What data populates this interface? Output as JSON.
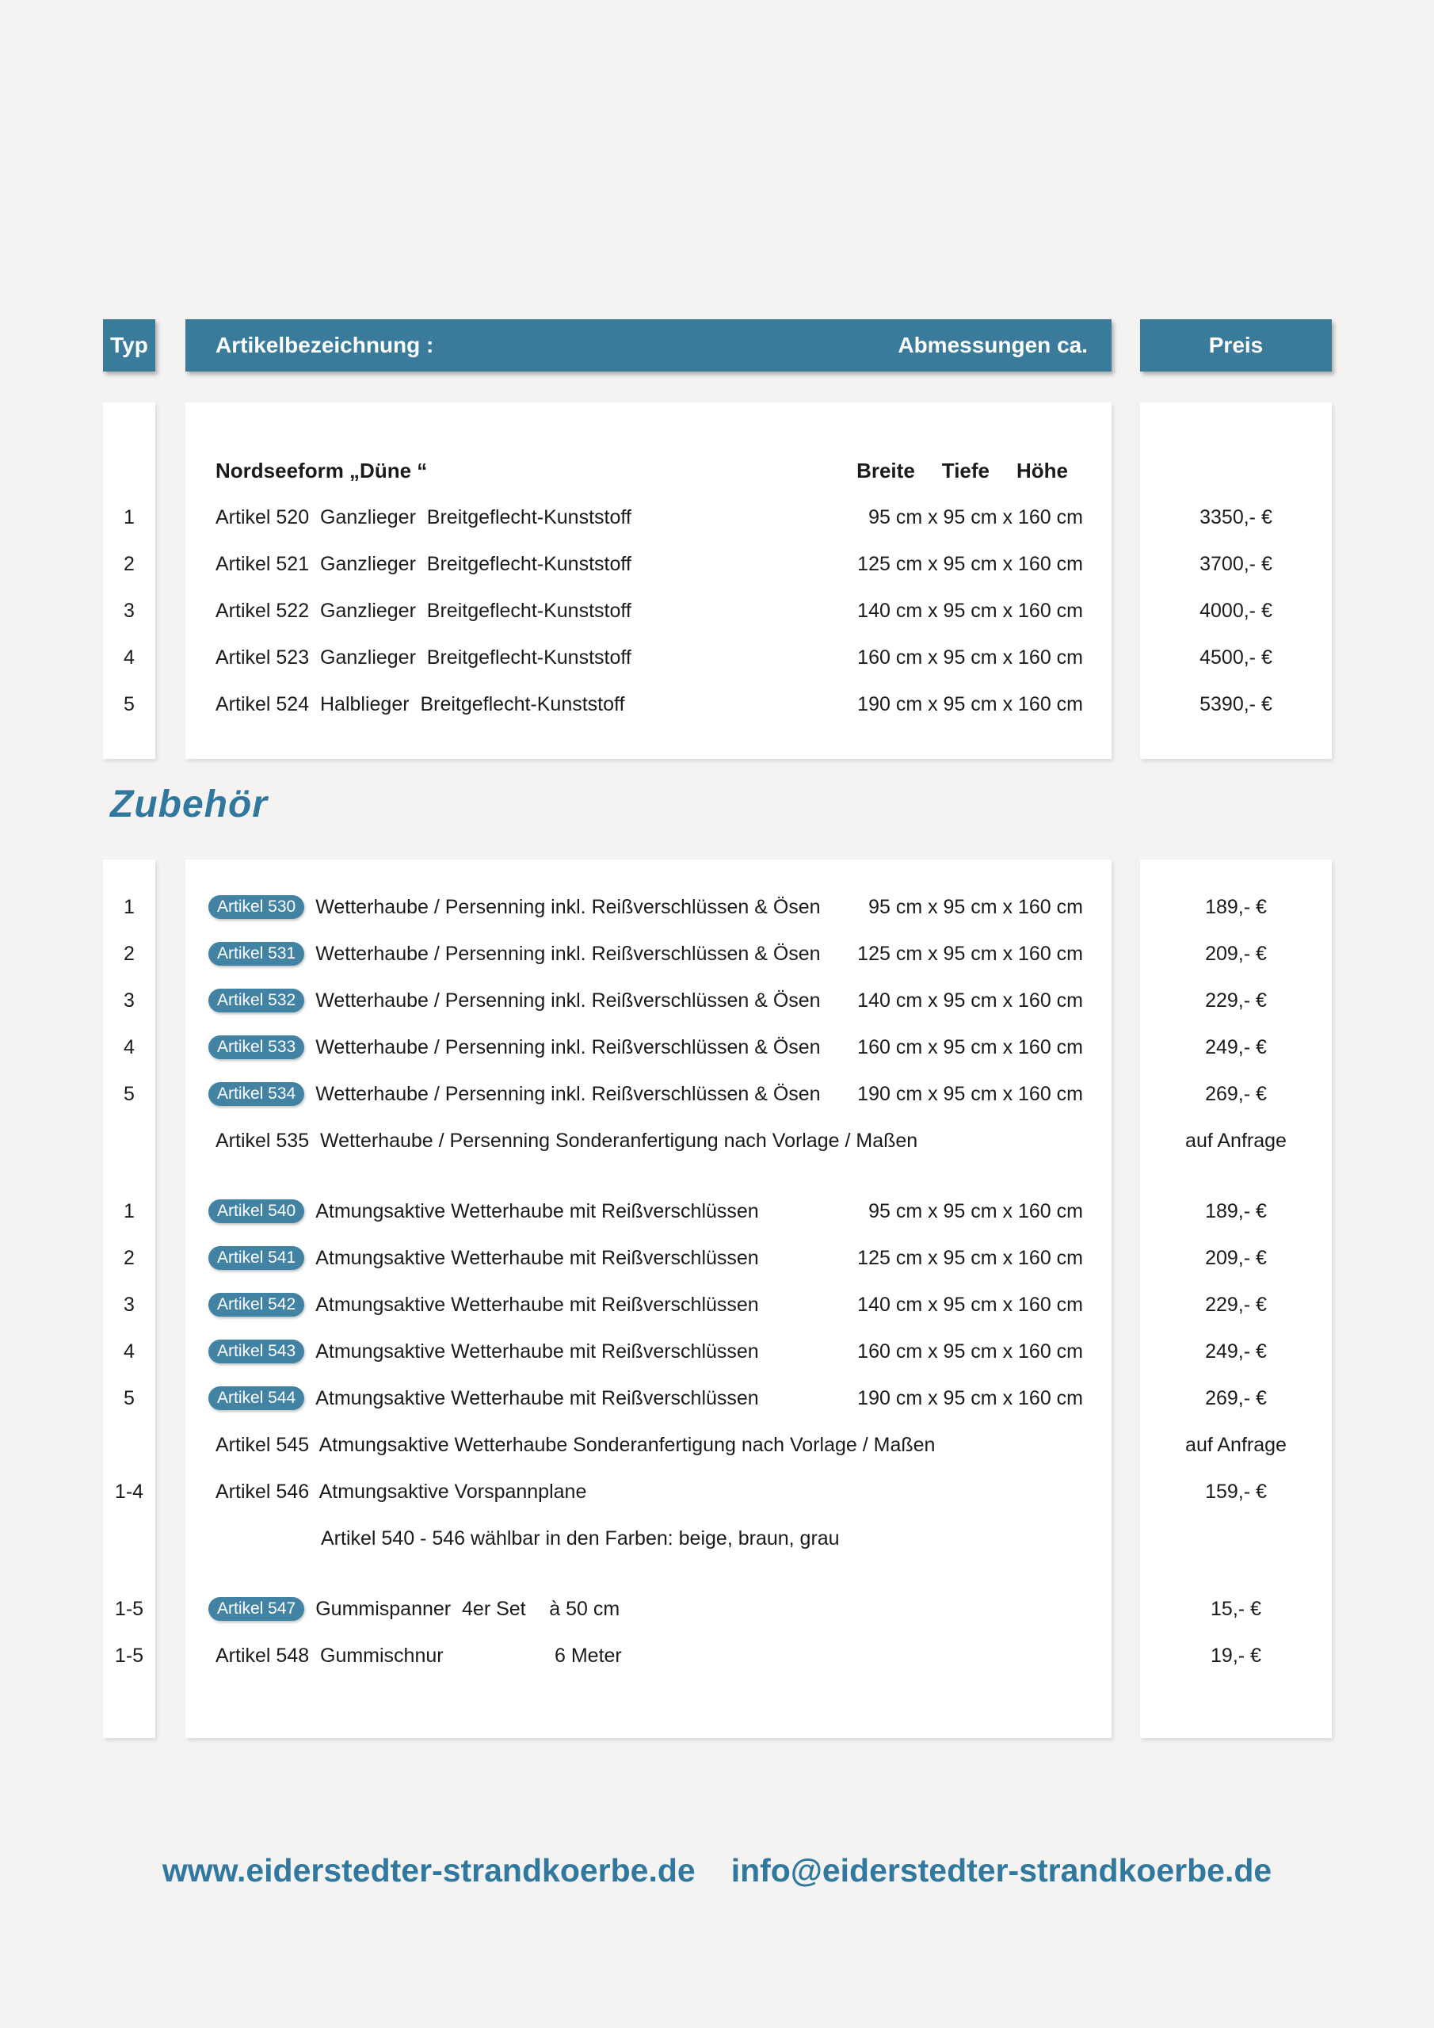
{
  "colors": {
    "page_background": "#f4f3f1",
    "header_teal": "#3a7a9b",
    "badge_teal": "#4283a4",
    "heading_blue": "#31789f"
  },
  "header": {
    "typ": "Typ",
    "artikelbezeichnung": "Artikelbezeichnung :",
    "abmessungen": "Abmessungen ca.",
    "preis": "Preis"
  },
  "section1": {
    "group_title": "Nordseeform „Düne “",
    "dims_headers": [
      "Breite",
      "Tiefe",
      "Höhe"
    ],
    "rows": [
      {
        "typ": "1",
        "desc": "Artikel 520  Ganzlieger  Breitgeflecht-Kunststoff",
        "dims": "95 cm x 95 cm x 160 cm",
        "price": "3350,- €"
      },
      {
        "typ": "2",
        "desc": "Artikel 521  Ganzlieger  Breitgeflecht-Kunststoff",
        "dims": "125 cm x 95 cm x 160 cm",
        "price": "3700,- €"
      },
      {
        "typ": "3",
        "desc": "Artikel 522  Ganzlieger  Breitgeflecht-Kunststoff",
        "dims": "140 cm x 95 cm x 160 cm",
        "price": "4000,- €"
      },
      {
        "typ": "4",
        "desc": "Artikel 523  Ganzlieger  Breitgeflecht-Kunststoff",
        "dims": "160 cm x 95 cm x 160 cm",
        "price": "4500,- €"
      },
      {
        "typ": "5",
        "desc": "Artikel 524  Halblieger  Breitgeflecht-Kunststoff",
        "dims": "190 cm x 95 cm x 160 cm",
        "price": "5390,- €"
      }
    ]
  },
  "zubehoer": {
    "title": "Zubehör",
    "rows": [
      {
        "typ": "1",
        "badge": "Artikel 530",
        "desc": "Wetterhaube / Persenning inkl. Reißverschlüssen & Ösen",
        "dims": "95 cm x 95 cm x 160 cm",
        "price": "189,- €"
      },
      {
        "typ": "2",
        "badge": "Artikel 531",
        "desc": "Wetterhaube / Persenning inkl. Reißverschlüssen & Ösen",
        "dims": "125 cm x 95 cm x 160 cm",
        "price": "209,- €"
      },
      {
        "typ": "3",
        "badge": "Artikel 532",
        "desc": "Wetterhaube / Persenning inkl. Reißverschlüssen & Ösen",
        "dims": "140 cm x 95 cm x 160 cm",
        "price": "229,- €"
      },
      {
        "typ": "4",
        "badge": "Artikel 533",
        "desc": "Wetterhaube / Persenning inkl. Reißverschlüssen & Ösen",
        "dims": "160 cm x 95 cm x 160 cm",
        "price": "249,- €"
      },
      {
        "typ": "5",
        "badge": "Artikel 534",
        "desc": "Wetterhaube / Persenning inkl. Reißverschlüssen & Ösen",
        "dims": "190 cm x 95 cm x 160 cm",
        "price": "269,- €"
      },
      {
        "typ": "",
        "desc": "Artikel 535  Wetterhaube / Persenning Sonderanfertigung nach Vorlage / Maßen",
        "dims": "",
        "price": "auf Anfrage"
      },
      {
        "typ": "1",
        "badge": "Artikel 540",
        "desc": "Atmungsaktive Wetterhaube mit Reißverschlüssen",
        "dims": "95 cm x 95 cm x 160 cm",
        "price": "189,- €"
      },
      {
        "typ": "2",
        "badge": "Artikel 541",
        "desc": "Atmungsaktive Wetterhaube mit Reißverschlüssen",
        "dims": "125 cm x 95 cm x 160 cm",
        "price": "209,- €"
      },
      {
        "typ": "3",
        "badge": "Artikel 542",
        "desc": "Atmungsaktive Wetterhaube mit Reißverschlüssen",
        "dims": "140 cm x 95 cm x 160 cm",
        "price": "229,- €"
      },
      {
        "typ": "4",
        "badge": "Artikel 543",
        "desc": "Atmungsaktive Wetterhaube mit Reißverschlüssen",
        "dims": "160 cm x 95 cm x 160 cm",
        "price": "249,- €"
      },
      {
        "typ": "5",
        "badge": "Artikel 544",
        "desc": "Atmungsaktive Wetterhaube mit Reißverschlüssen",
        "dims": "190 cm x 95 cm x 160 cm",
        "price": "269,- €"
      },
      {
        "typ": "",
        "desc": "Artikel 545  Atmungsaktive Wetterhaube Sonderanfertigung nach Vorlage / Maßen",
        "dims": "",
        "price": "auf Anfrage"
      },
      {
        "typ": "1-4",
        "desc": "Artikel 546  Atmungsaktive Vorspannplane",
        "dims": "",
        "price": "159,- €"
      },
      {
        "note": "Artikel 540 - 546 wählbar in den Farben: beige, braun, grau"
      },
      {
        "typ": "1-5",
        "badge": "Artikel 547",
        "desc": "Gummispanner  4er Set",
        "qty": "à 50 cm",
        "price": "15,- €"
      },
      {
        "typ": "1-5",
        "desc": "Artikel 548  Gummischnur",
        "qty": "6 Meter",
        "price": "19,- €"
      }
    ]
  },
  "footer": {
    "website": "www.eiderstedter-strandkoerbe.de",
    "email": "info@eiderstedter-strandkoerbe.de"
  }
}
